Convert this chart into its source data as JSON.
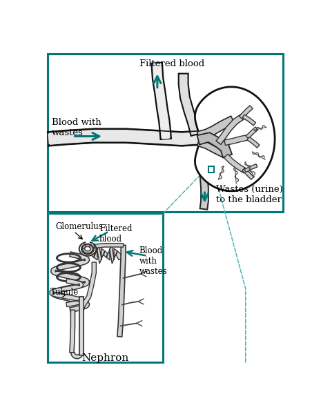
{
  "background_color": "#ffffff",
  "teal_color": "#007878",
  "dashed_color": "#50b0b0",
  "labels": {
    "blood_with_wastes": "Blood with\nwastes",
    "filtered_blood_top": "Filtered blood",
    "wastes_urine": "Wastes (urine)\nto the bladder",
    "glomerulus": "Glomerulus",
    "filtered_blood_inset": "Filtered\nblood",
    "blood_with_wastes_inset": "Blood\nwith\nwastes",
    "tubule": "Tubule",
    "nephron": "Nephron"
  }
}
